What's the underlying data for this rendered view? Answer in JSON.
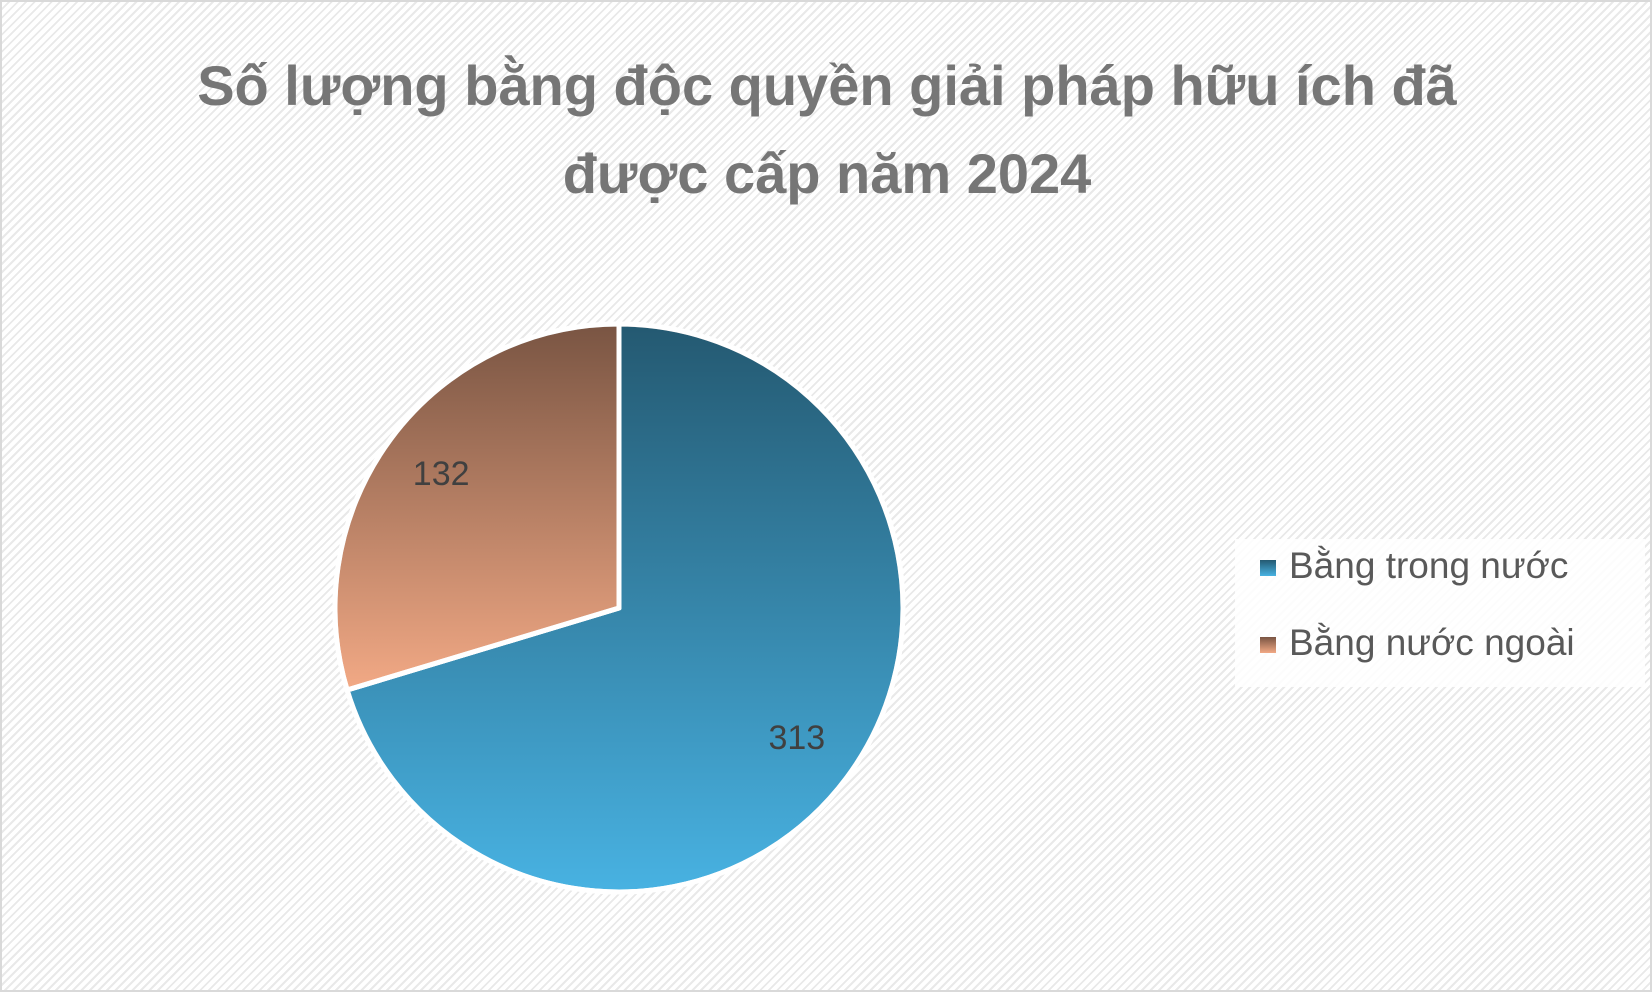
{
  "chart_data": {
    "type": "pie",
    "title": "Số lượng bằng độc quyền giải pháp hữu ích đã được cấp năm 2024",
    "categories": [
      "Bằng trong nước",
      "Bằng nước ngoài"
    ],
    "values": [
      313,
      132
    ],
    "colors": [
      "#48b2e2",
      "#f2a985"
    ],
    "legend": "right"
  }
}
